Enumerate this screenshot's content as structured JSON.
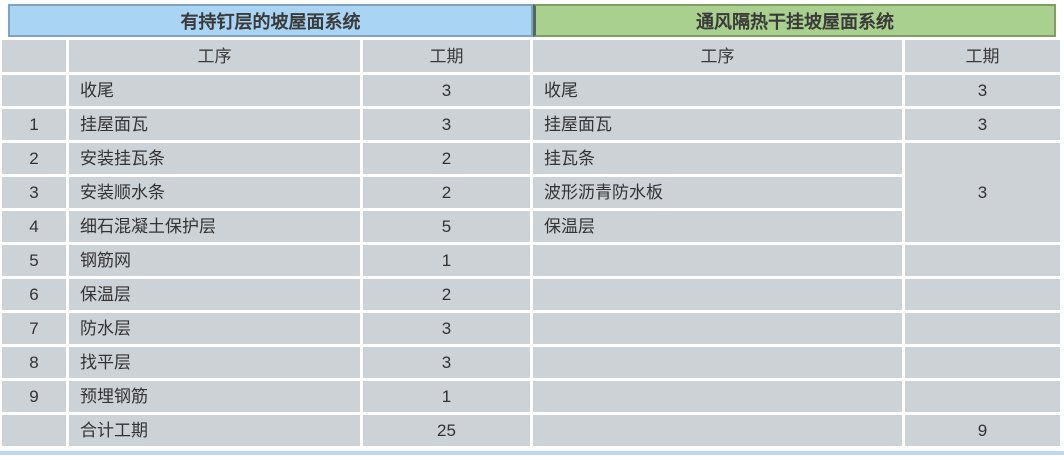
{
  "left": {
    "title": "有持钉层的坡屋面系统",
    "headers": {
      "index": "",
      "process": "工序",
      "duration": "工期"
    },
    "rows": [
      {
        "no": "",
        "process": "收尾",
        "duration": "3"
      },
      {
        "no": "1",
        "process": "挂屋面瓦",
        "duration": "3"
      },
      {
        "no": "2",
        "process": "安装挂瓦条",
        "duration": "2"
      },
      {
        "no": "3",
        "process": "安装顺水条",
        "duration": "2"
      },
      {
        "no": "4",
        "process": "细石混凝土保护层",
        "duration": "5"
      },
      {
        "no": "5",
        "process": "钢筋网",
        "duration": "1"
      },
      {
        "no": "6",
        "process": "保温层",
        "duration": "2"
      },
      {
        "no": "7",
        "process": "防水层",
        "duration": "3"
      },
      {
        "no": "8",
        "process": "找平层",
        "duration": "3"
      },
      {
        "no": "9",
        "process": "预埋钢筋",
        "duration": "1"
      },
      {
        "no": "",
        "process": "合计工期",
        "duration": "25"
      }
    ]
  },
  "right": {
    "title": "通风隔热干挂坡屋面系统",
    "headers": {
      "process": "工序",
      "duration": "工期"
    },
    "merged_duration": "3",
    "rows": [
      {
        "process": "收尾",
        "duration": "3"
      },
      {
        "process": "挂屋面瓦",
        "duration": "3"
      },
      {
        "process": "挂瓦条",
        "duration": ""
      },
      {
        "process": "波形沥青防水板",
        "duration": ""
      },
      {
        "process": "保温层",
        "duration": ""
      },
      {
        "process": "",
        "duration": ""
      },
      {
        "process": "",
        "duration": ""
      },
      {
        "process": "",
        "duration": ""
      },
      {
        "process": "",
        "duration": ""
      },
      {
        "process": "",
        "duration": ""
      },
      {
        "process": "",
        "duration": "9"
      }
    ]
  },
  "colors": {
    "left_header_bg": "#A9D4F3",
    "right_header_bg": "#A9D08E",
    "cell_bg": "#CDD2D7",
    "bottom_strip": "#BDD7EE"
  }
}
